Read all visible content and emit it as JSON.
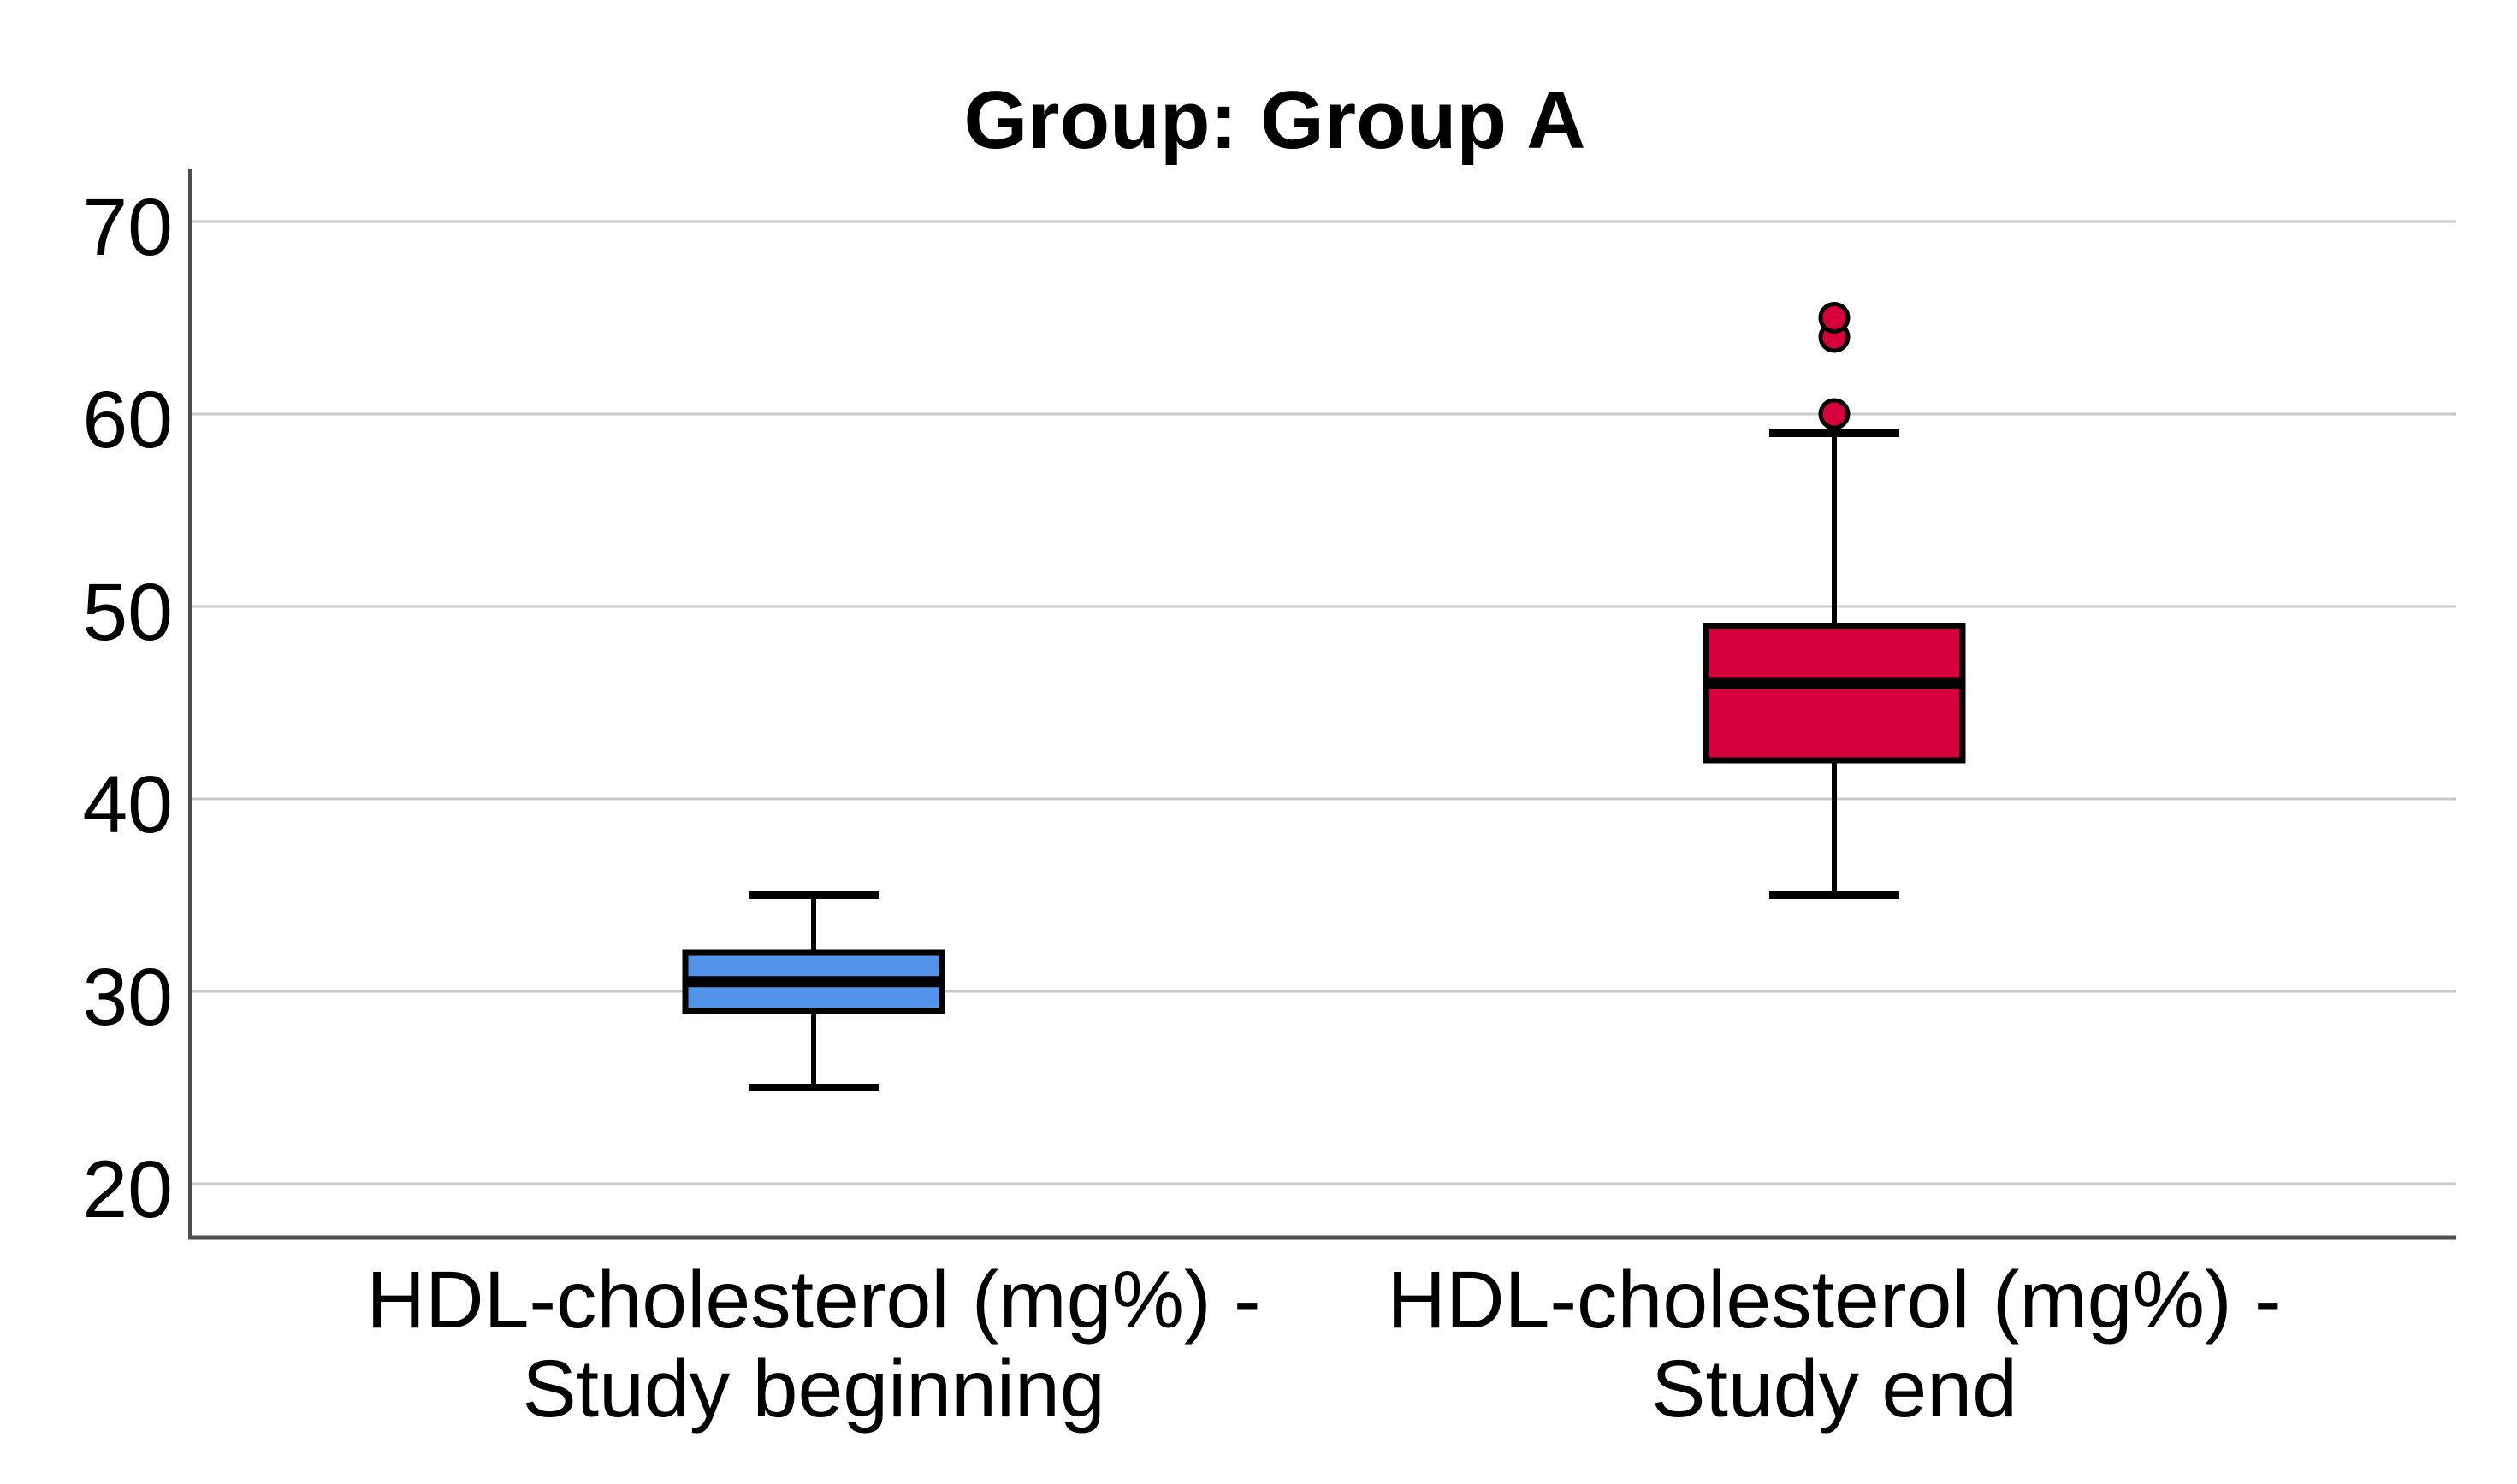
{
  "chart_data": {
    "type": "boxplot",
    "title": "Group: Group A",
    "xlabel": "",
    "ylabel": "",
    "ylim": [
      17,
      73
    ],
    "yticks": [
      20,
      30,
      40,
      50,
      60,
      70
    ],
    "grid": true,
    "legend_position": "none",
    "categories": [
      "HDL-cholesterol (mg%) - Study beginning",
      "HDL-cholesterol (mg%) - Study end"
    ],
    "series": [
      {
        "name": "HDL-cholesterol (mg%) - Study beginning",
        "label_lines": [
          "HDL-cholesterol (mg%) -",
          "Study beginning"
        ],
        "whisker_low": 25,
        "q1": 29,
        "median": 30.5,
        "q3": 32,
        "whisker_high": 35,
        "outliers": [],
        "fill_color": "#5292E8"
      },
      {
        "name": "HDL-cholesterol (mg%) - Study end",
        "label_lines": [
          "HDL-cholesterol (mg%) -",
          "Study end"
        ],
        "whisker_low": 35,
        "q1": 42,
        "median": 46,
        "q3": 49,
        "whisker_high": 59,
        "outliers": [
          60,
          64,
          65
        ],
        "fill_color": "#D6003C"
      }
    ]
  },
  "colors": {
    "background": "#FFFFFF",
    "gridline": "#C9C9C9",
    "axis_line": "#4D4D4D",
    "box_border": "#000000",
    "median_line": "#000000",
    "whisker_line": "#000000",
    "outlier_fill_beginning": "#5292E8",
    "outlier_fill_end": "#D6003C",
    "text": "#000000"
  }
}
